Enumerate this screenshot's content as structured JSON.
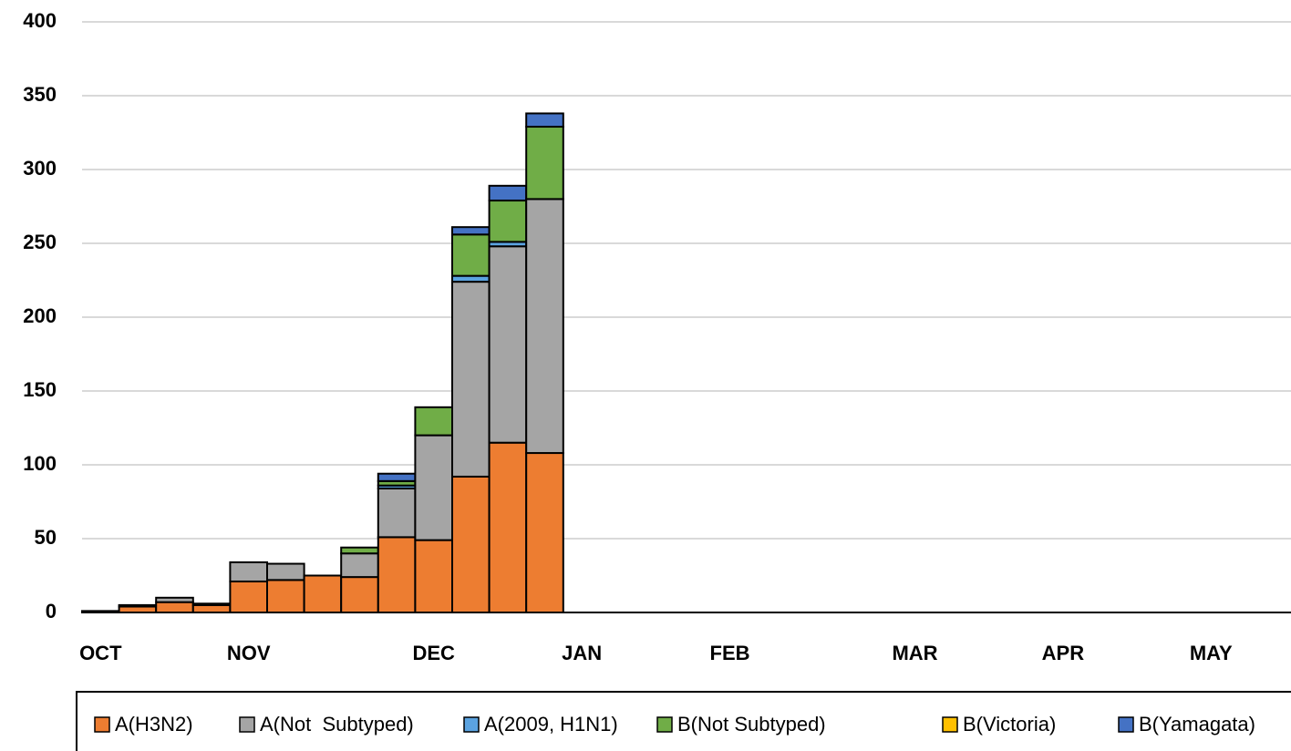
{
  "chart_data": {
    "type": "stacked_bar",
    "categories": [
      "OCT",
      null,
      null,
      null,
      "NOV",
      null,
      null,
      null,
      null,
      "DEC",
      null,
      null,
      null,
      "JAN",
      null,
      null,
      null,
      "FEB",
      null,
      null,
      null,
      null,
      "MAR",
      null,
      null,
      null,
      "APR",
      null,
      null,
      null,
      "MAY",
      null,
      null
    ],
    "series": [
      {
        "name": "A(H3N2)",
        "color": "#ed7d31",
        "values": [
          1,
          4,
          7,
          5,
          21,
          22,
          25,
          24,
          51,
          49,
          92,
          115,
          108,
          null,
          null,
          null,
          null,
          null,
          null,
          null,
          null,
          null,
          null,
          null,
          null,
          null,
          null,
          null,
          null,
          null,
          null,
          null,
          null
        ]
      },
      {
        "name": "A(Not  Subtyped)",
        "color": "#a5a5a5",
        "values": [
          0,
          1,
          3,
          1,
          13,
          11,
          0,
          16,
          33,
          71,
          132,
          133,
          172,
          null,
          null,
          null,
          null,
          null,
          null,
          null,
          null,
          null,
          null,
          null,
          null,
          null,
          null,
          null,
          null,
          null,
          null,
          null,
          null
        ]
      },
      {
        "name": "A(2009, H1N1)",
        "color": "#5ba3e0",
        "values": [
          0,
          0,
          0,
          0,
          0,
          0,
          0,
          0,
          2,
          0,
          4,
          3,
          0,
          null,
          null,
          null,
          null,
          null,
          null,
          null,
          null,
          null,
          null,
          null,
          null,
          null,
          null,
          null,
          null,
          null,
          null,
          null,
          null
        ]
      },
      {
        "name": "B(Not Subtyped)",
        "color": "#70ad47",
        "values": [
          0,
          0,
          0,
          0,
          0,
          0,
          0,
          4,
          3,
          19,
          28,
          28,
          49,
          null,
          null,
          null,
          null,
          null,
          null,
          null,
          null,
          null,
          null,
          null,
          null,
          null,
          null,
          null,
          null,
          null,
          null,
          null,
          null
        ]
      },
      {
        "name": "B(Victoria)",
        "color": "#ffc000",
        "values": [
          0,
          0,
          0,
          0,
          0,
          0,
          0,
          0,
          0,
          0,
          0,
          0,
          0,
          null,
          null,
          null,
          null,
          null,
          null,
          null,
          null,
          null,
          null,
          null,
          null,
          null,
          null,
          null,
          null,
          null,
          null,
          null,
          null
        ]
      },
      {
        "name": "B(Yamagata)",
        "color": "#4472c4",
        "values": [
          0,
          0,
          0,
          0,
          0,
          0,
          0,
          0,
          5,
          0,
          5,
          10,
          9,
          null,
          null,
          null,
          null,
          null,
          null,
          null,
          null,
          null,
          null,
          null,
          null,
          null,
          null,
          null,
          null,
          null,
          null,
          null,
          null
        ]
      }
    ],
    "ylim": [
      0,
      400
    ],
    "yticks": [
      0,
      50,
      100,
      150,
      200,
      250,
      300,
      350,
      400
    ],
    "grid": true,
    "legend": "bottom"
  }
}
